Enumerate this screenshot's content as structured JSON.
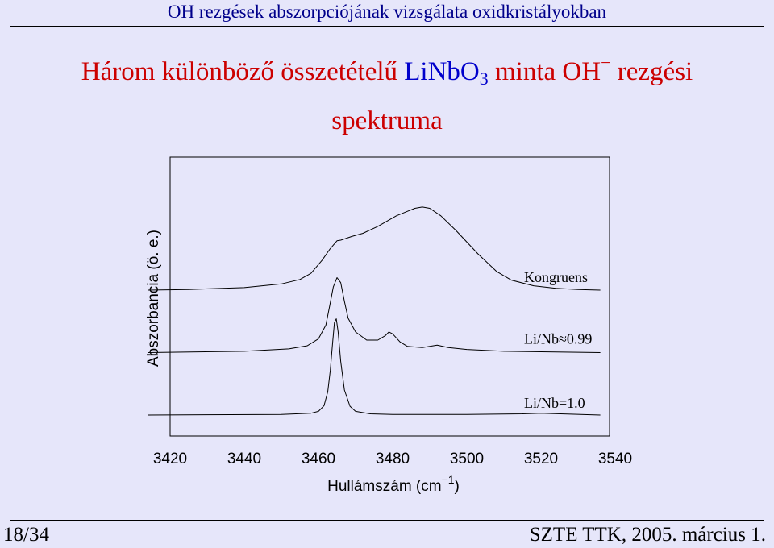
{
  "header": {
    "title": "OH rezgések abszorpciójának vizsgálata oxidkristályokban"
  },
  "slide": {
    "title_part1": "Három különböző összetételű ",
    "title_chem": "LiNbO",
    "title_chem_sub": "3",
    "title_part2": " minta OH",
    "title_sup": "−",
    "title_part3": " rezgési",
    "title_line2": "spektruma"
  },
  "footer": {
    "page": "18/34",
    "info": "SZTE TTK, 2005. március 1."
  },
  "colors": {
    "background": "#e6e6fa",
    "title_red": "#cc0000",
    "title_blue": "#0000cc",
    "header_blue": "#00008b"
  },
  "chart_data": {
    "type": "line",
    "xlabel": "Hullámszám (cm",
    "xlabel_sup": "−1",
    "xlabel_end": ")",
    "ylabel": "Abszorbancia (ö. e.)",
    "xlim": [
      3414,
      3536
    ],
    "x_ticks": [
      3420,
      3440,
      3460,
      3480,
      3500,
      3520,
      3540
    ],
    "grid": false,
    "series": [
      {
        "name": "Kongruens",
        "offset": 2.0,
        "x": [
          3414,
          3425,
          3440,
          3450,
          3455,
          3458,
          3461,
          3463,
          3464,
          3465,
          3466,
          3467,
          3469,
          3472,
          3476,
          3481,
          3486,
          3488,
          3490,
          3493,
          3497,
          3503,
          3508,
          3512,
          3518,
          3524,
          3530,
          3536
        ],
        "y": [
          0.0,
          0.01,
          0.04,
          0.1,
          0.17,
          0.27,
          0.48,
          0.65,
          0.72,
          0.79,
          0.8,
          0.82,
          0.86,
          0.91,
          1.02,
          1.19,
          1.31,
          1.33,
          1.31,
          1.19,
          0.96,
          0.58,
          0.3,
          0.16,
          0.07,
          0.03,
          0.01,
          0.0
        ]
      },
      {
        "name": "Li/Nb≈0.99",
        "offset": 1.0,
        "x": [
          3414,
          3440,
          3452,
          3457,
          3460,
          3462,
          3463,
          3464,
          3465,
          3466,
          3467,
          3468,
          3470,
          3473,
          3476,
          3478,
          3479,
          3480,
          3482,
          3484,
          3488,
          3492,
          3495,
          3500,
          3510,
          3536
        ],
        "y": [
          0.0,
          0.02,
          0.06,
          0.11,
          0.22,
          0.44,
          0.74,
          1.05,
          1.2,
          1.12,
          0.82,
          0.55,
          0.33,
          0.2,
          0.2,
          0.27,
          0.33,
          0.3,
          0.17,
          0.1,
          0.08,
          0.12,
          0.08,
          0.05,
          0.02,
          0.0
        ]
      },
      {
        "name": "Li/Nb=1.0",
        "offset": 0.0,
        "x": [
          3414,
          3450,
          3458,
          3460,
          3461.5,
          3462.5,
          3463.2,
          3463.8,
          3464.3,
          3464.8,
          3465.3,
          3466,
          3467,
          3468.5,
          3470,
          3474,
          3480,
          3500,
          3515,
          3520,
          3536
        ],
        "y": [
          0.0,
          0.01,
          0.03,
          0.06,
          0.15,
          0.37,
          0.72,
          1.15,
          1.48,
          1.54,
          1.33,
          0.86,
          0.4,
          0.14,
          0.06,
          0.02,
          0.01,
          0.01,
          0.02,
          0.03,
          0.0
        ]
      }
    ]
  }
}
